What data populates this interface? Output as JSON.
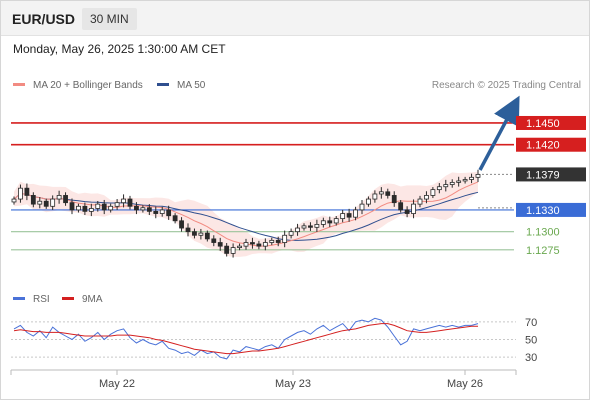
{
  "header": {
    "pair": "EUR/USD",
    "timeframe": "30 MIN"
  },
  "date_line": "Monday, May 26, 2025 1:30:00 AM CET",
  "credit": "Research © 2025 Trading Central",
  "legend": [
    {
      "label": "MA 20 + Bollinger Bands",
      "color": "#f28b82"
    },
    {
      "label": "MA 50",
      "color": "#2f4f8f"
    }
  ],
  "rsi_legend": [
    {
      "label": "RSI",
      "color": "#4a72d8"
    },
    {
      "label": "9MA",
      "color": "#d42020"
    }
  ],
  "chart_data": {
    "type": "candlestick",
    "price_axis": {
      "ylim": [
        1.1225,
        1.149
      ]
    },
    "x_labels": [
      "May 22",
      "May 23",
      "May 26"
    ],
    "levels": [
      {
        "label": "1.1450",
        "value": 1.145,
        "kind": "resistance",
        "color": "#d61f1f"
      },
      {
        "label": "1.1420",
        "value": 1.142,
        "kind": "resistance",
        "color": "#d61f1f"
      },
      {
        "label": "1.1379",
        "value": 1.1379,
        "kind": "current",
        "color": "#333333"
      },
      {
        "label": "1.1330",
        "value": 1.133,
        "kind": "pivot",
        "color": "#3a6cd6"
      },
      {
        "label": "1.1300",
        "value": 1.13,
        "kind": "support",
        "color": "#6aa84f"
      },
      {
        "label": "1.1275",
        "value": 1.1275,
        "kind": "support",
        "color": "#6aa84f"
      }
    ],
    "close_series": [
      1.1345,
      1.136,
      1.135,
      1.1338,
      1.1342,
      1.1335,
      1.1345,
      1.135,
      1.134,
      1.133,
      1.1335,
      1.1328,
      1.1332,
      1.1338,
      1.133,
      1.1335,
      1.134,
      1.1345,
      1.1335,
      1.133,
      1.1333,
      1.1328,
      1.1325,
      1.133,
      1.1322,
      1.1315,
      1.1305,
      1.13,
      1.1295,
      1.1298,
      1.129,
      1.1285,
      1.128,
      1.127,
      1.1278,
      1.128,
      1.1285,
      1.1283,
      1.128,
      1.1285,
      1.1288,
      1.1285,
      1.1295,
      1.13,
      1.1305,
      1.1308,
      1.1306,
      1.131,
      1.1315,
      1.1312,
      1.1318,
      1.1325,
      1.132,
      1.133,
      1.1338,
      1.1345,
      1.1352,
      1.1355,
      1.135,
      1.134,
      1.133,
      1.1325,
      1.1338,
      1.1345,
      1.135,
      1.1358,
      1.1362,
      1.1365,
      1.1368,
      1.137,
      1.1372,
      1.1375,
      1.1379
    ],
    "rsi": {
      "levels": [
        70,
        50,
        30
      ],
      "ylim": [
        20,
        80
      ],
      "values": [
        62,
        66,
        58,
        54,
        60,
        52,
        64,
        58,
        54,
        50,
        56,
        48,
        52,
        58,
        50,
        56,
        60,
        62,
        52,
        46,
        50,
        46,
        44,
        48,
        40,
        38,
        34,
        36,
        32,
        38,
        34,
        36,
        30,
        28,
        38,
        36,
        42,
        40,
        38,
        42,
        44,
        40,
        50,
        54,
        58,
        60,
        56,
        62,
        66,
        60,
        64,
        68,
        60,
        70,
        72,
        70,
        74,
        72,
        64,
        54,
        44,
        48,
        62,
        60,
        62,
        64,
        66,
        64,
        66,
        64,
        66,
        66,
        68
      ],
      "ma_values": [
        60,
        61,
        60,
        59,
        59,
        58,
        58,
        58,
        57,
        56,
        55,
        54,
        54,
        54,
        54,
        54,
        55,
        55,
        55,
        54,
        53,
        52,
        50,
        49,
        47,
        45,
        43,
        41,
        39,
        38,
        37,
        36,
        35,
        34,
        34,
        35,
        36,
        37,
        37,
        38,
        39,
        40,
        42,
        44,
        46,
        48,
        50,
        52,
        54,
        56,
        58,
        60,
        61,
        62,
        64,
        66,
        67,
        68,
        68,
        66,
        63,
        60,
        59,
        58,
        58,
        59,
        60,
        61,
        62,
        63,
        64,
        65,
        65
      ]
    }
  }
}
